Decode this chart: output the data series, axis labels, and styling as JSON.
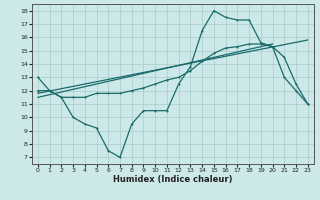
{
  "xlabel": "Humidex (Indice chaleur)",
  "ylabel": "",
  "xlim": [
    -0.5,
    23.5
  ],
  "ylim": [
    6.5,
    18.5
  ],
  "yticks": [
    7,
    8,
    9,
    10,
    11,
    12,
    13,
    14,
    15,
    16,
    17,
    18
  ],
  "xticks": [
    0,
    1,
    2,
    3,
    4,
    5,
    6,
    7,
    8,
    9,
    10,
    11,
    12,
    13,
    14,
    15,
    16,
    17,
    18,
    19,
    20,
    21,
    22,
    23
  ],
  "background_color": "#cce8e8",
  "grid_color": "#aacccc",
  "line_color": "#1a6b6b",
  "line1_x": [
    0,
    1,
    2,
    3,
    4,
    5,
    6,
    7,
    8,
    9,
    10,
    11,
    12,
    13,
    14,
    15,
    16,
    17,
    18,
    19,
    20,
    21,
    22,
    23
  ],
  "line1_y": [
    13.0,
    12.0,
    11.5,
    10.0,
    9.5,
    9.2,
    7.5,
    7.0,
    9.5,
    10.5,
    10.5,
    10.5,
    12.5,
    13.8,
    16.5,
    18.0,
    17.5,
    17.3,
    17.3,
    15.6,
    15.3,
    13.0,
    12.0,
    11.0
  ],
  "line2_x": [
    0,
    1,
    2,
    3,
    4,
    5,
    6,
    7,
    8,
    9,
    10,
    11,
    12,
    13,
    14,
    15,
    16,
    17,
    18,
    19,
    20,
    21,
    22,
    23
  ],
  "line2_y": [
    12.0,
    12.0,
    11.5,
    11.5,
    11.5,
    11.8,
    11.8,
    11.8,
    12.0,
    12.2,
    12.5,
    12.8,
    13.0,
    13.5,
    14.2,
    14.8,
    15.2,
    15.3,
    15.5,
    15.5,
    15.3,
    14.5,
    12.5,
    11.0
  ],
  "line3_x": [
    0,
    20
  ],
  "line3_y": [
    11.5,
    15.5
  ],
  "line4_x": [
    0,
    23
  ],
  "line4_y": [
    11.8,
    15.8
  ]
}
